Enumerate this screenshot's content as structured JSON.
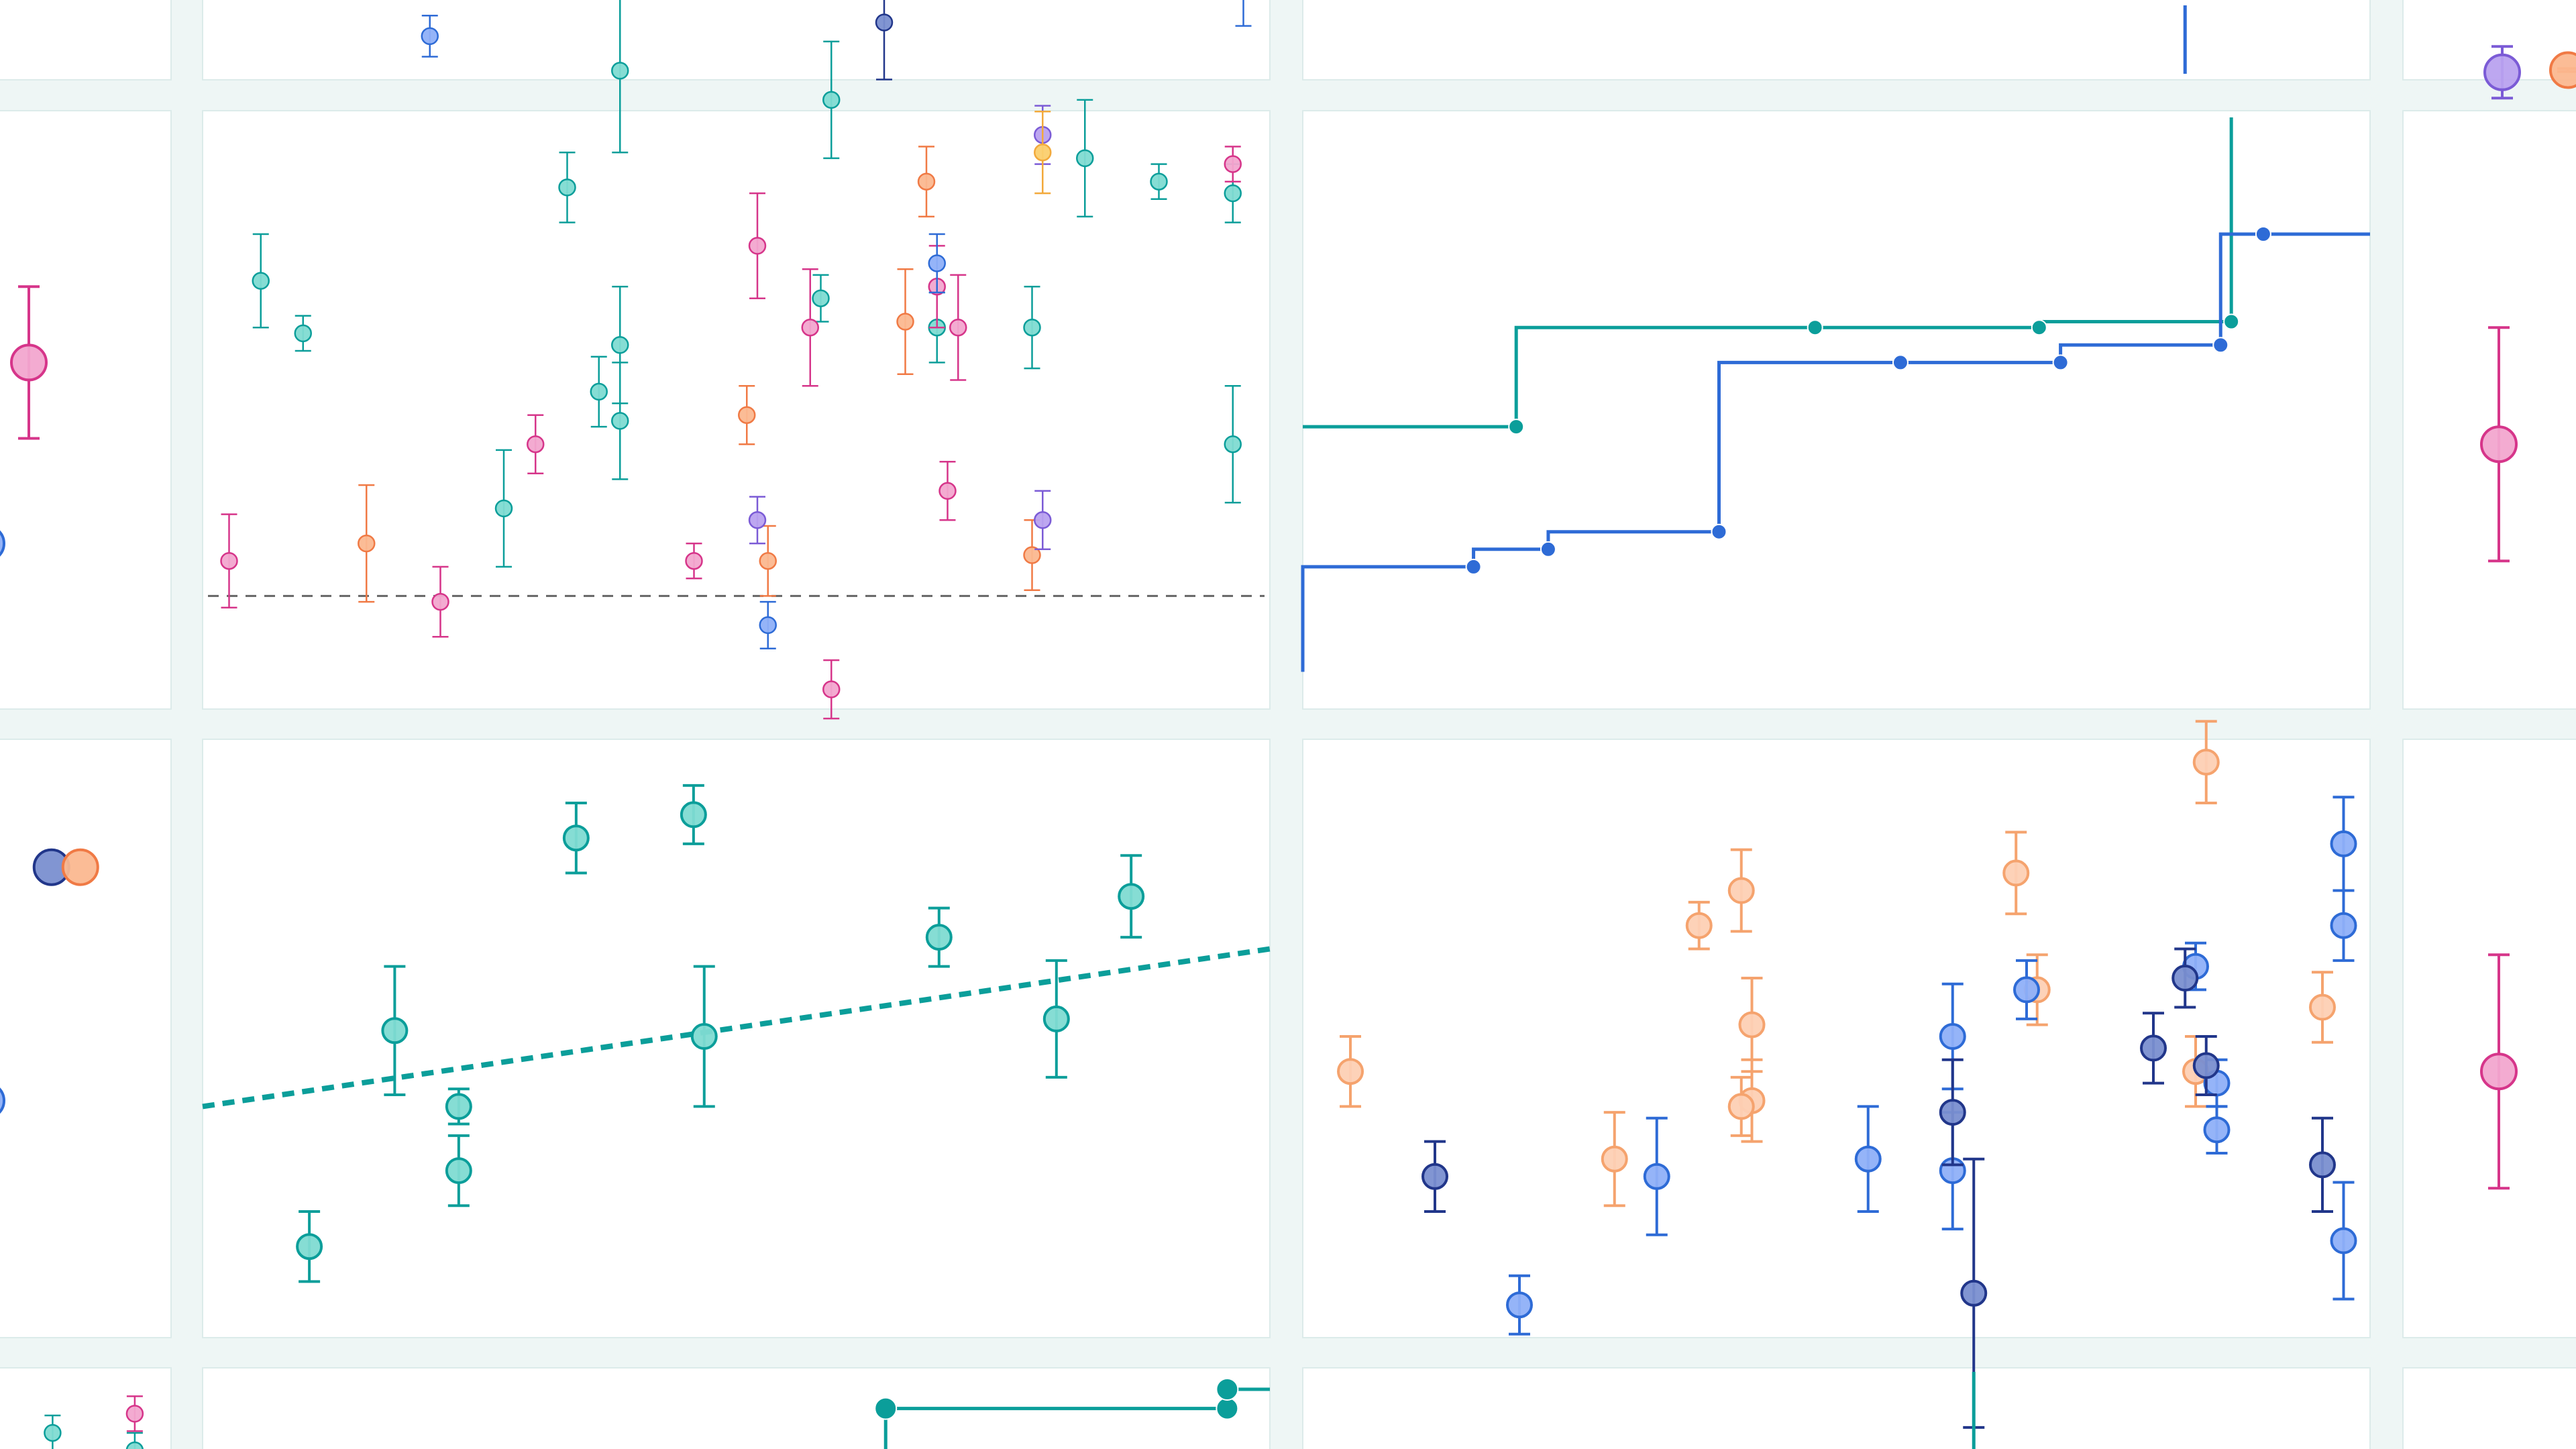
{
  "colors": {
    "background": "#eef6f5",
    "teal": "#0b9e9a",
    "teal_fill": "#7fdbd2",
    "blue": "#2e6bd6",
    "blue_light": "#8fb0f8",
    "navy": "#21368a",
    "navy_fill": "#7a8fd0",
    "pink": "#d6358a",
    "pink_fill": "#f2a7cf",
    "orange": "#f07a45",
    "orange_fill": "#fbb890",
    "peach": "#f5a36e",
    "peach_fill": "#fdd0b4",
    "purple": "#7b5bd6",
    "purple_fill": "#b9a2ef",
    "gold": "#f2a93b",
    "gold_fill": "#fbcf6e",
    "reference_line": "#666666"
  },
  "chart_data": [
    {
      "type": "scatter",
      "panel": "top-middle",
      "series": [
        {
          "color": "blue_light",
          "points": [
            {
              "x": 0.21,
              "y": 0.33,
              "err": 0.18
            }
          ]
        },
        {
          "color": "navy",
          "points": [
            {
              "x": 0.64,
              "y": 0.45,
              "err": 0.5
            }
          ]
        },
        {
          "color": "blue_light",
          "points": [
            {
              "x": 0.98,
              "y": 0.97,
              "err": 0.55
            }
          ]
        }
      ]
    },
    {
      "type": "line",
      "panel": "top-right",
      "step": true,
      "series": [
        {
          "color": "blue",
          "x": [
            0.83,
            0.83
          ],
          "y": [
            0.0,
            0.6
          ]
        }
      ]
    },
    {
      "type": "scatter",
      "panel": "middle-left-edge",
      "series": [
        {
          "color": "pink",
          "points": [
            {
              "x": 0.9,
              "y": 0.58,
              "err": 0.13
            }
          ]
        },
        {
          "color": "blue",
          "points": [
            {
              "x": 0.0,
              "y": 0.27,
              "err": 0.13
            }
          ]
        }
      ]
    },
    {
      "type": "scatter",
      "panel": "middle-middle",
      "reference_line": 0.18,
      "series": [
        {
          "color": "teal",
          "points": [
            {
              "x": 0.05,
              "y": 0.72,
              "err": 0.08
            },
            {
              "x": 0.09,
              "y": 0.63,
              "err": 0.03
            },
            {
              "x": 0.28,
              "y": 0.33,
              "err": 0.1
            },
            {
              "x": 0.34,
              "y": 0.88,
              "err": 0.06
            },
            {
              "x": 0.37,
              "y": 0.53,
              "err": 0.06
            },
            {
              "x": 0.39,
              "y": 0.61,
              "err": 0.1
            },
            {
              "x": 0.39,
              "y": 0.48,
              "err": 0.1
            },
            {
              "x": 0.39,
              "y": 1.08,
              "err": 0.14
            },
            {
              "x": 0.58,
              "y": 0.69,
              "err": 0.04
            },
            {
              "x": 0.59,
              "y": 1.03,
              "err": 0.1
            },
            {
              "x": 0.69,
              "y": 0.64,
              "err": 0.06
            },
            {
              "x": 0.78,
              "y": 0.64,
              "err": 0.07
            },
            {
              "x": 0.83,
              "y": 0.93,
              "err": 0.1
            },
            {
              "x": 0.9,
              "y": 0.89,
              "err": 0.03
            },
            {
              "x": 0.97,
              "y": 0.87,
              "err": 0.05
            },
            {
              "x": 0.97,
              "y": 0.44,
              "err": 0.1
            }
          ]
        },
        {
          "color": "pink",
          "points": [
            {
              "x": 0.02,
              "y": 0.24,
              "err": 0.08
            },
            {
              "x": 0.22,
              "y": 0.17,
              "err": 0.06
            },
            {
              "x": 0.31,
              "y": 0.44,
              "err": 0.05
            },
            {
              "x": 0.46,
              "y": 0.24,
              "err": 0.03
            },
            {
              "x": 0.52,
              "y": 0.78,
              "err": 0.09
            },
            {
              "x": 0.57,
              "y": 0.64,
              "err": 0.1
            },
            {
              "x": 0.59,
              "y": 0.02,
              "err": 0.05
            },
            {
              "x": 0.69,
              "y": 0.71,
              "err": 0.07
            },
            {
              "x": 0.7,
              "y": 0.36,
              "err": 0.05
            },
            {
              "x": 0.71,
              "y": 0.64,
              "err": 0.09
            },
            {
              "x": 0.97,
              "y": 0.92,
              "err": 0.03
            }
          ]
        },
        {
          "color": "orange",
          "points": [
            {
              "x": 0.15,
              "y": 0.27,
              "err": 0.1
            },
            {
              "x": 0.51,
              "y": 0.49,
              "err": 0.05
            },
            {
              "x": 0.53,
              "y": 0.24,
              "err": 0.06
            },
            {
              "x": 0.66,
              "y": 0.65,
              "err": 0.09
            },
            {
              "x": 0.68,
              "y": 0.89,
              "err": 0.06
            },
            {
              "x": 0.78,
              "y": 0.25,
              "err": 0.06
            }
          ]
        },
        {
          "color": "blue",
          "points": [
            {
              "x": 0.53,
              "y": 0.13,
              "err": 0.04
            },
            {
              "x": 0.69,
              "y": 0.75,
              "err": 0.05
            }
          ]
        },
        {
          "color": "purple",
          "points": [
            {
              "x": 0.52,
              "y": 0.31,
              "err": 0.04
            },
            {
              "x": 0.79,
              "y": 0.31,
              "err": 0.05
            },
            {
              "x": 0.79,
              "y": 0.97,
              "err": 0.05
            }
          ]
        },
        {
          "color": "gold",
          "points": [
            {
              "x": 0.79,
              "y": 0.94,
              "err": 0.07
            }
          ]
        }
      ]
    },
    {
      "type": "line",
      "panel": "middle-right",
      "step": true,
      "series": [
        {
          "color": "teal",
          "x": [
            0.0,
            0.2,
            0.48,
            0.69,
            0.87,
            0.87
          ],
          "y": [
            0.47,
            0.47,
            0.64,
            0.64,
            0.65,
            1.0
          ]
        },
        {
          "color": "blue",
          "x": [
            0.0,
            0.16,
            0.23,
            0.39,
            0.56,
            0.71,
            0.86,
            0.9,
            1.0
          ],
          "y": [
            0.05,
            0.23,
            0.26,
            0.29,
            0.58,
            0.58,
            0.61,
            0.8,
            0.8
          ]
        }
      ]
    },
    {
      "type": "scatter",
      "panel": "middle-right-edge",
      "series": [
        {
          "color": "pink",
          "points": [
            {
              "x": 0.5,
              "y": 0.44,
              "err": 0.2
            }
          ]
        }
      ]
    },
    {
      "type": "scatter",
      "panel": "lower-left-edge",
      "series": [
        {
          "color": "navy",
          "points": [
            {
              "x": 0.45,
              "y": 0.79,
              "err": 0
            }
          ]
        },
        {
          "color": "orange",
          "points": [
            {
              "x": 0.65,
              "y": 0.79,
              "err": 0
            }
          ]
        },
        {
          "color": "blue",
          "points": [
            {
              "x": 0.0,
              "y": 0.39,
              "err": 0
            }
          ]
        }
      ]
    },
    {
      "type": "scatter",
      "panel": "lower-middle",
      "trendline": [
        [
          0.0,
          0.38
        ],
        [
          1.0,
          0.65
        ]
      ],
      "series": [
        {
          "color": "teal",
          "points": [
            {
              "x": 0.1,
              "y": 0.14,
              "err": 0.06
            },
            {
              "x": 0.18,
              "y": 0.51,
              "err": 0.11
            },
            {
              "x": 0.24,
              "y": 0.27,
              "err": 0.06
            },
            {
              "x": 0.24,
              "y": 0.38,
              "err": 0.03
            },
            {
              "x": 0.35,
              "y": 0.84,
              "err": 0.06
            },
            {
              "x": 0.46,
              "y": 0.88,
              "err": 0.05
            },
            {
              "x": 0.47,
              "y": 0.5,
              "err": 0.12
            },
            {
              "x": 0.69,
              "y": 0.67,
              "err": 0.05
            },
            {
              "x": 0.8,
              "y": 0.53,
              "err": 0.1
            },
            {
              "x": 0.87,
              "y": 0.74,
              "err": 0.07
            }
          ]
        }
      ]
    },
    {
      "type": "scatter",
      "panel": "lower-right",
      "series": [
        {
          "color": "peach",
          "points": [
            {
              "x": 0.04,
              "y": 0.44,
              "err": 0.06
            },
            {
              "x": 0.29,
              "y": 0.29,
              "err": 0.08
            },
            {
              "x": 0.37,
              "y": 0.69,
              "err": 0.04
            },
            {
              "x": 0.41,
              "y": 0.75,
              "err": 0.07
            },
            {
              "x": 0.42,
              "y": 0.52,
              "err": 0.08
            },
            {
              "x": 0.42,
              "y": 0.39,
              "err": 0.07
            },
            {
              "x": 0.41,
              "y": 0.38,
              "err": 0.05
            },
            {
              "x": 0.67,
              "y": 0.78,
              "err": 0.07
            },
            {
              "x": 0.69,
              "y": 0.58,
              "err": 0.06
            },
            {
              "x": 0.84,
              "y": 0.44,
              "err": 0.06
            },
            {
              "x": 0.85,
              "y": 0.97,
              "err": 0.07
            },
            {
              "x": 0.96,
              "y": 0.55,
              "err": 0.06
            }
          ]
        },
        {
          "color": "blue_light",
          "points": [
            {
              "x": 0.2,
              "y": 0.04,
              "err": 0.05
            },
            {
              "x": 0.33,
              "y": 0.26,
              "err": 0.1
            },
            {
              "x": 0.53,
              "y": 0.29,
              "err": 0.09
            },
            {
              "x": 0.61,
              "y": 0.5,
              "err": 0.09
            },
            {
              "x": 0.61,
              "y": 0.27,
              "err": 0.1
            },
            {
              "x": 0.68,
              "y": 0.58,
              "err": 0.05
            },
            {
              "x": 0.84,
              "y": 0.62,
              "err": 0.04
            },
            {
              "x": 0.86,
              "y": 0.42,
              "err": 0.04
            },
            {
              "x": 0.86,
              "y": 0.34,
              "err": 0.04
            },
            {
              "x": 0.98,
              "y": 0.83,
              "err": 0.08
            },
            {
              "x": 0.98,
              "y": 0.69,
              "err": 0.06
            },
            {
              "x": 0.98,
              "y": 0.15,
              "err": 0.1
            }
          ]
        },
        {
          "color": "navy",
          "points": [
            {
              "x": 0.12,
              "y": 0.26,
              "err": 0.06
            },
            {
              "x": 0.61,
              "y": 0.37,
              "err": 0.09
            },
            {
              "x": 0.63,
              "y": 0.06,
              "err": 0.23
            },
            {
              "x": 0.8,
              "y": 0.48,
              "err": 0.06
            },
            {
              "x": 0.83,
              "y": 0.6,
              "err": 0.05
            },
            {
              "x": 0.85,
              "y": 0.45,
              "err": 0.05
            },
            {
              "x": 0.96,
              "y": 0.28,
              "err": 0.08
            }
          ]
        }
      ]
    },
    {
      "type": "scatter",
      "panel": "lower-right-edge",
      "series": [
        {
          "color": "pink",
          "points": [
            {
              "x": 0.5,
              "y": 0.44,
              "err": 0.2
            }
          ]
        }
      ]
    },
    {
      "type": "scatter",
      "panel": "top-right-edge",
      "series": [
        {
          "color": "purple",
          "points": [
            {
              "x": 0.5,
              "y": 0.02,
              "err": 0.35
            }
          ]
        },
        {
          "color": "orange",
          "points": [
            {
              "x": 0.85,
              "y": 0.05,
              "err": 0.02
            }
          ]
        }
      ]
    },
    {
      "type": "line",
      "panel": "bottom-middle",
      "step": true,
      "series": [
        {
          "color": "teal",
          "x": [
            0.64,
            0.64,
            0.96,
            0.96,
            1.0
          ],
          "y": [
            0.0,
            0.58,
            0.58,
            0.8,
            0.8
          ]
        }
      ]
    },
    {
      "type": "scatter",
      "panel": "bottom-left-edge",
      "series": [
        {
          "color": "teal",
          "points": [
            {
              "x": 0.32,
              "y": 0.3,
              "err": 0.2
            },
            {
              "x": 0.82,
              "y": 0.1,
              "err": 0.2
            }
          ]
        },
        {
          "color": "pink",
          "points": [
            {
              "x": 0.82,
              "y": 0.52,
              "err": 0.2
            }
          ]
        }
      ]
    },
    {
      "type": "line",
      "panel": "bottom-right",
      "series": [
        {
          "color": "teal",
          "x": [
            0.63,
            0.63
          ],
          "y": [
            0.0,
            1.0
          ]
        }
      ]
    }
  ]
}
